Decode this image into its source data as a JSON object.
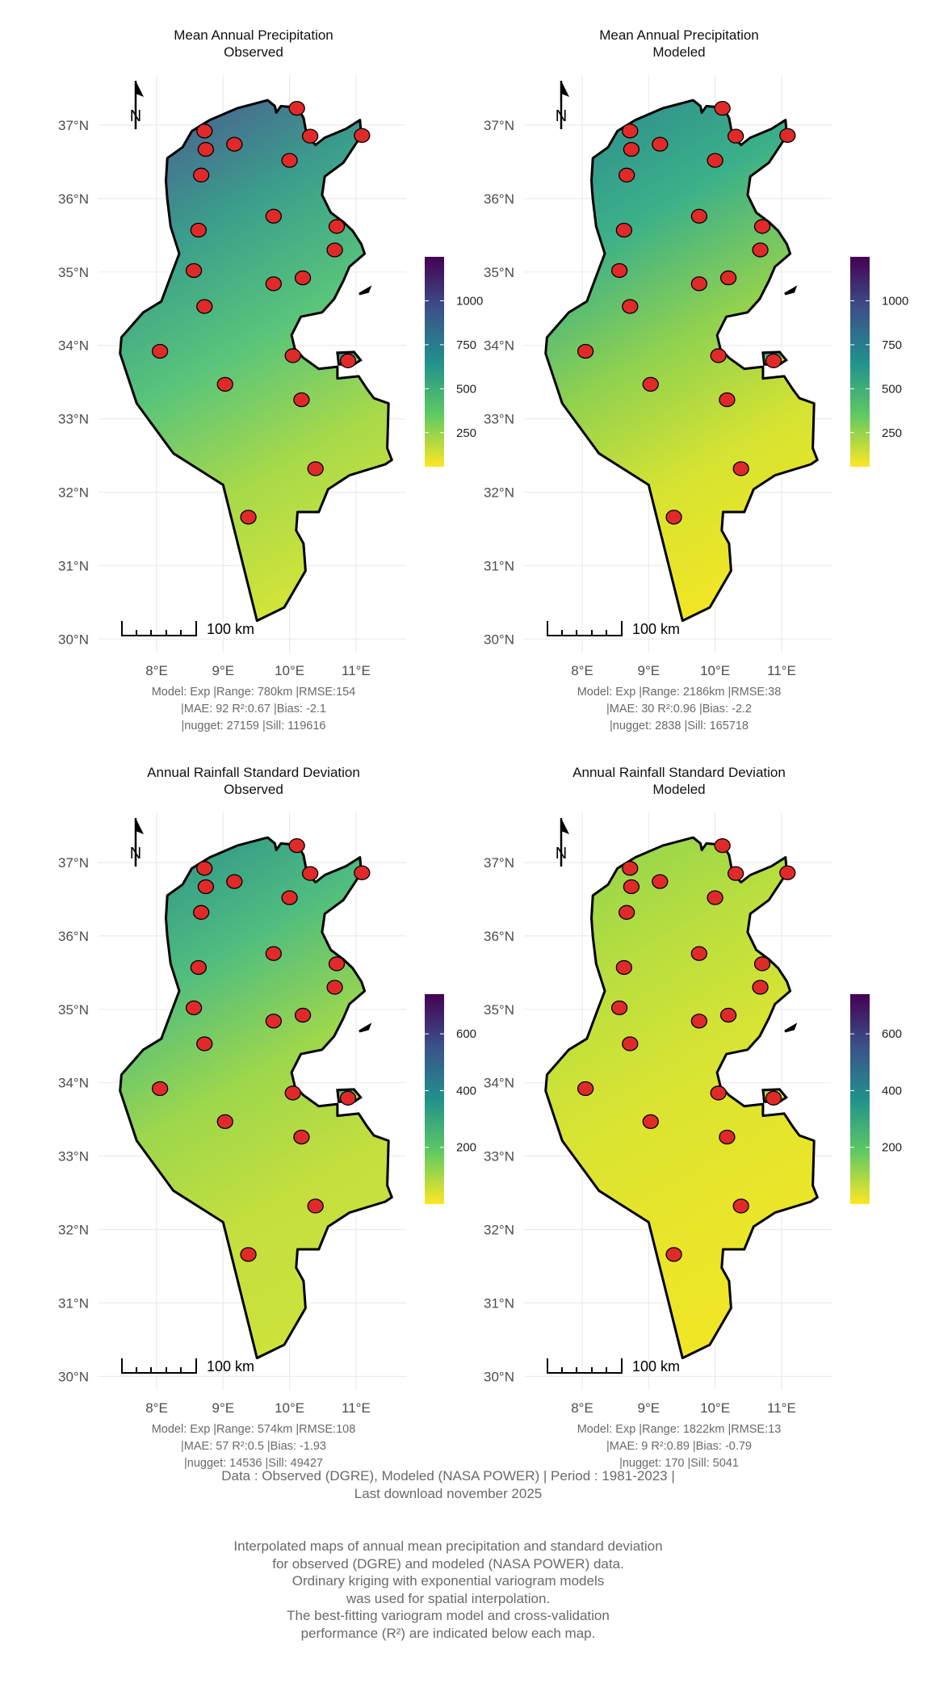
{
  "stations_lonlat": [
    [
      8.05,
      33.92
    ],
    [
      8.72,
      36.92
    ],
    [
      8.74,
      36.67
    ],
    [
      8.67,
      36.32
    ],
    [
      9.17,
      36.74
    ],
    [
      10.11,
      37.23
    ],
    [
      10.31,
      36.85
    ],
    [
      11.09,
      36.86
    ],
    [
      10.0,
      36.52
    ],
    [
      9.76,
      35.76
    ],
    [
      8.63,
      35.57
    ],
    [
      10.71,
      35.62
    ],
    [
      10.68,
      35.3
    ],
    [
      8.56,
      35.02
    ],
    [
      9.76,
      34.84
    ],
    [
      10.2,
      34.92
    ],
    [
      8.72,
      34.53
    ],
    [
      10.05,
      33.86
    ],
    [
      10.88,
      33.79
    ],
    [
      9.03,
      33.47
    ],
    [
      10.18,
      33.26
    ],
    [
      10.39,
      32.32
    ],
    [
      9.38,
      31.66
    ]
  ],
  "axes": {
    "lat_ticks": [
      "30°N",
      "31°N",
      "32°N",
      "33°N",
      "34°N",
      "35°N",
      "36°N",
      "37°N"
    ],
    "lon_ticks": [
      "8°E",
      "9°E",
      "10°E",
      "11°E"
    ],
    "grid": true
  },
  "scale_bar": "100 km",
  "north_arrow": "N",
  "colors": {
    "station_fill": "#e02a2a",
    "outline": "#000000",
    "viridis": [
      "#440154",
      "#3b528b",
      "#21918c",
      "#5ec962",
      "#fde725"
    ]
  },
  "panels": [
    {
      "title": "Mean Annual Precipitation",
      "subtitle": "Observed",
      "legend": {
        "ticks": [
          1000,
          750,
          500,
          250
        ],
        "range": [
          56,
          1250
        ]
      },
      "fill_gradient": [
        "#4a5f90",
        "#3b9d8c",
        "#58c47b",
        "#a6d94a",
        "#d2e43a"
      ],
      "caption": [
        "Model: Exp |Range: 780km |RMSE:154",
        "|MAE: 92 R²:0.67 |Bias: -2.1",
        "|nugget: 27159 |Sill: 119616"
      ]
    },
    {
      "title": "Mean Annual Precipitation",
      "subtitle": "Modeled",
      "legend": {
        "ticks": [
          1000,
          750,
          500,
          250
        ],
        "range": [
          56,
          1250
        ]
      },
      "fill_gradient": [
        "#2f8d8c",
        "#3bb089",
        "#8fd150",
        "#d6e332",
        "#f1e624"
      ],
      "caption": [
        "Model: Exp |Range: 2186km |RMSE:38",
        "|MAE: 30 R²:0.96 |Bias: -2.2",
        "|nugget: 2838 |Sill: 165718"
      ]
    },
    {
      "title": "Annual Rainfall Standard Deviation",
      "subtitle": "Observed",
      "legend": {
        "ticks": [
          600,
          400,
          200
        ],
        "range": [
          0,
          740
        ]
      },
      "fill_gradient": [
        "#2f958b",
        "#4fbd7f",
        "#9dd74c",
        "#c4df3e",
        "#cde23b"
      ],
      "caption": [
        "Model: Exp |Range: 574km |RMSE:108",
        "|MAE: 57 R²:0.5 |Bias: -1.93",
        "|nugget: 14536 |Sill: 49427"
      ]
    },
    {
      "title": "Annual Rainfall Standard Deviation",
      "subtitle": "Modeled",
      "legend": {
        "ticks": [
          600,
          400,
          200
        ],
        "range": [
          0,
          740
        ]
      },
      "fill_gradient": [
        "#8fd44f",
        "#b9de3f",
        "#d8e433",
        "#e7e52a",
        "#f0e626"
      ],
      "caption": [
        "Model: Exp |Range: 1822km |RMSE:13",
        "|MAE: 9 R²:0.89 |Bias: -0.79",
        "|nugget: 170 |Sill: 5041"
      ]
    }
  ],
  "footer": {
    "source": [
      "Data : Observed (DGRE), Modeled (NASA POWER) | Period : 1981-2023 |",
      "Last download november 2025"
    ],
    "description": [
      "Interpolated maps of annual mean precipitation and standard deviation",
      "for observed (DGRE) and modeled (NASA POWER) data.",
      "Ordinary kriging with exponential variogram models",
      "was used for spatial interpolation.",
      "The best-fitting variogram model and cross-validation",
      "performance (R²) are indicated below each map."
    ]
  }
}
